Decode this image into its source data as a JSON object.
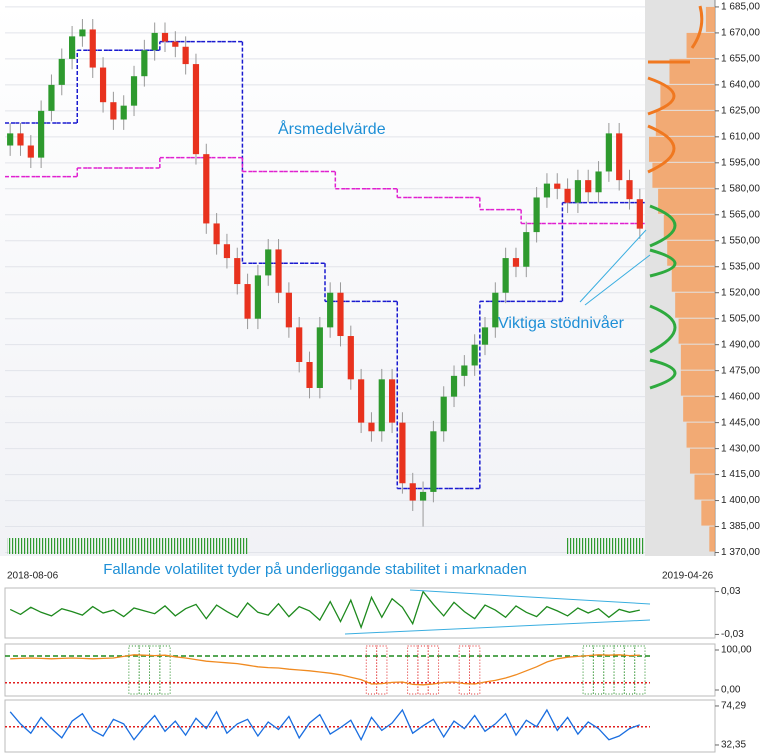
{
  "chart_data": [
    {
      "type": "candlestick",
      "x_labels": [
        "2018-08-06",
        "2019-04-26"
      ],
      "annotations": [
        "Årsmedelvärde",
        "Viktiga stödnivåer"
      ],
      "up_color": "#2e9a2e",
      "down_color": "#e8321e",
      "open": [
        1605,
        1612,
        1605,
        1598,
        1625,
        1640,
        1655,
        1668,
        1672,
        1650,
        1630,
        1620,
        1628,
        1645,
        1660,
        1670,
        1665,
        1662,
        1652,
        1600,
        1560,
        1548,
        1540,
        1525,
        1505,
        1530,
        1545,
        1520,
        1500,
        1480,
        1465,
        1500,
        1520,
        1495,
        1470,
        1445,
        1440,
        1470,
        1445,
        1410,
        1400,
        1405,
        1440,
        1460,
        1472,
        1478,
        1490,
        1500,
        1520,
        1540,
        1535,
        1555,
        1575,
        1583,
        1580,
        1572,
        1585,
        1578,
        1590,
        1612,
        1585,
        1574
      ],
      "high": [
        1618,
        1618,
        1611,
        1631,
        1646,
        1661,
        1674,
        1678,
        1678,
        1656,
        1636,
        1634,
        1651,
        1666,
        1676,
        1676,
        1671,
        1668,
        1658,
        1606,
        1566,
        1554,
        1546,
        1531,
        1536,
        1551,
        1551,
        1526,
        1506,
        1486,
        1506,
        1526,
        1526,
        1501,
        1476,
        1451,
        1476,
        1476,
        1451,
        1416,
        1411,
        1446,
        1466,
        1478,
        1484,
        1496,
        1506,
        1526,
        1546,
        1546,
        1561,
        1581,
        1589,
        1589,
        1586,
        1591,
        1591,
        1596,
        1618,
        1618,
        1591,
        1580
      ],
      "low": [
        1599,
        1599,
        1592,
        1592,
        1619,
        1634,
        1649,
        1662,
        1644,
        1624,
        1614,
        1614,
        1622,
        1639,
        1654,
        1659,
        1656,
        1646,
        1594,
        1554,
        1542,
        1534,
        1519,
        1499,
        1499,
        1524,
        1514,
        1494,
        1474,
        1459,
        1459,
        1494,
        1489,
        1464,
        1439,
        1434,
        1434,
        1439,
        1404,
        1394,
        1385,
        1399,
        1434,
        1454,
        1466,
        1472,
        1484,
        1494,
        1514,
        1529,
        1529,
        1549,
        1569,
        1574,
        1566,
        1566,
        1572,
        1572,
        1584,
        1579,
        1568,
        1551
      ],
      "close": [
        1612,
        1605,
        1598,
        1625,
        1640,
        1655,
        1668,
        1672,
        1650,
        1630,
        1620,
        1628,
        1645,
        1660,
        1670,
        1665,
        1662,
        1652,
        1600,
        1560,
        1548,
        1540,
        1525,
        1505,
        1530,
        1545,
        1520,
        1500,
        1480,
        1465,
        1500,
        1520,
        1495,
        1470,
        1445,
        1440,
        1470,
        1445,
        1410,
        1400,
        1405,
        1440,
        1460,
        1472,
        1478,
        1490,
        1500,
        1520,
        1540,
        1535,
        1555,
        1575,
        1583,
        1580,
        1572,
        1585,
        1578,
        1590,
        1612,
        1585,
        1574,
        1557
      ],
      "averages": [
        {
          "color": "#1a1ad0",
          "values": [
            1618,
            1618,
            1618,
            1618,
            1618,
            1618,
            1618,
            1660,
            1660,
            1660,
            1660,
            1660,
            1660,
            1660,
            1660,
            1665,
            1665,
            1665,
            1665,
            1665,
            1665,
            1665,
            1665,
            1537,
            1537,
            1537,
            1537,
            1537,
            1537,
            1537,
            1537,
            1515,
            1515,
            1515,
            1515,
            1515,
            1515,
            1515,
            1407,
            1407,
            1407,
            1407,
            1407,
            1407,
            1407,
            1407,
            1515,
            1515,
            1515,
            1515,
            1515,
            1515,
            1515,
            1515,
            1572,
            1572,
            1572,
            1572,
            1572,
            1572,
            1572,
            1572
          ]
        },
        {
          "color": "#e020d0",
          "values": [
            1587,
            1587,
            1587,
            1587,
            1587,
            1587,
            1587,
            1592,
            1592,
            1592,
            1592,
            1592,
            1592,
            1592,
            1592,
            1598,
            1598,
            1598,
            1598,
            1598,
            1598,
            1598,
            1598,
            1590,
            1590,
            1590,
            1590,
            1590,
            1590,
            1590,
            1590,
            1590,
            1580,
            1580,
            1580,
            1580,
            1580,
            1580,
            1575,
            1575,
            1575,
            1575,
            1575,
            1575,
            1575,
            1575,
            1568,
            1568,
            1568,
            1568,
            1560,
            1560,
            1560,
            1560,
            1560,
            1560,
            1560,
            1560,
            1560,
            1560,
            1560,
            1560
          ]
        }
      ],
      "volume_profile": {
        "color": "#f4a060",
        "bins": [
          1370,
          1385,
          1400,
          1415,
          1430,
          1445,
          1460,
          1475,
          1490,
          1505,
          1520,
          1535,
          1550,
          1565,
          1580,
          1595,
          1610,
          1625,
          1640,
          1655,
          1670,
          1685
        ],
        "values": [
          5,
          12,
          18,
          22,
          25,
          28,
          30,
          30,
          32,
          35,
          38,
          42,
          45,
          50,
          55,
          58,
          52,
          48,
          40,
          25,
          8
        ]
      },
      "ylim": [
        1368,
        1689
      ],
      "yticks": [
        {
          "value": 1370,
          "label": "1 370,00"
        },
        {
          "value": 1385,
          "label": "1 385,00"
        },
        {
          "value": 1400,
          "label": "1 400,00"
        },
        {
          "value": 1415,
          "label": "1 415,00"
        },
        {
          "value": 1430,
          "label": "1 430,00"
        },
        {
          "value": 1445,
          "label": "1 445,00"
        },
        {
          "value": 1460,
          "label": "1 460,00"
        },
        {
          "value": 1475,
          "label": "1 475,00"
        },
        {
          "value": 1490,
          "label": "1 490,00"
        },
        {
          "value": 1505,
          "label": "1 505,00"
        },
        {
          "value": 1520,
          "label": "1 520,00"
        },
        {
          "value": 1535,
          "label": "1 535,00"
        },
        {
          "value": 1550,
          "label": "1 550,00"
        },
        {
          "value": 1565,
          "label": "1 565,00"
        },
        {
          "value": 1580,
          "label": "1 580,00"
        },
        {
          "value": 1595,
          "label": "1 595,00"
        },
        {
          "value": 1610,
          "label": "1 610,00"
        },
        {
          "value": 1625,
          "label": "1 625,00"
        },
        {
          "value": 1640,
          "label": "1 640,00"
        },
        {
          "value": 1655,
          "label": "1 655,00"
        },
        {
          "value": 1670,
          "label": "1 670,00"
        },
        {
          "value": 1685,
          "label": "1 685,00"
        }
      ],
      "grid": true
    },
    {
      "type": "line",
      "title": "Fallande volatilitet tyder på underliggande stabilitet i marknaden",
      "series": [
        {
          "color": "#1e8a1e",
          "values": [
            0.005,
            -0.002,
            0.008,
            0.001,
            -0.004,
            0.006,
            0.002,
            -0.003,
            0.009,
            0.0,
            0.004,
            -0.005,
            0.007,
            0.003,
            -0.001,
            0.01,
            -0.004,
            0.006,
            0.012,
            -0.008,
            0.011,
            0.002,
            -0.006,
            0.014,
            0.001,
            -0.003,
            0.013,
            -0.005,
            0.009,
            0.003,
            -0.01,
            0.016,
            -0.012,
            0.018,
            -0.02,
            0.022,
            -0.006,
            0.02,
            0.008,
            -0.015,
            0.03,
            0.012,
            -0.004,
            0.015,
            0.002,
            -0.008,
            0.011,
            0.004,
            -0.006,
            0.01,
            0.001,
            -0.005,
            0.009,
            0.003,
            -0.004,
            0.007,
            0.0,
            0.006,
            -0.006,
            0.005,
            0.001,
            0.004
          ]
        }
      ],
      "ylim": [
        -0.035,
        0.035
      ],
      "yticks": [
        {
          "value": 0.03,
          "label": "0,03"
        },
        {
          "value": -0.03,
          "label": "-0,03"
        }
      ]
    },
    {
      "type": "line",
      "series": [
        {
          "color": "#f08a20",
          "values": [
            78,
            79,
            80,
            79,
            78,
            79,
            80,
            79,
            78,
            79,
            80,
            84,
            88,
            87,
            86,
            87,
            83,
            80,
            76,
            72,
            70,
            68,
            66,
            62,
            58,
            56,
            55,
            52,
            50,
            48,
            45,
            42,
            38,
            32,
            26,
            15,
            16,
            19,
            20,
            14,
            13,
            15,
            19,
            20,
            16,
            15,
            20,
            24,
            30,
            38,
            48,
            58,
            70,
            78,
            82,
            84,
            86,
            88,
            87,
            88,
            86,
            87
          ]
        }
      ],
      "levels": [
        {
          "color": "#1e8a1e",
          "value": 85
        },
        {
          "color": "#e02020",
          "value": 18
        }
      ],
      "ylim": [
        -15,
        115
      ],
      "yticks": [
        {
          "value": 100,
          "label": "100,00"
        },
        {
          "value": 0,
          "label": "0,00"
        }
      ]
    },
    {
      "type": "line",
      "series": [
        {
          "color": "#1a6ee0",
          "values": [
            68,
            55,
            45,
            62,
            50,
            40,
            58,
            66,
            48,
            42,
            60,
            55,
            38,
            52,
            64,
            47,
            58,
            43,
            61,
            50,
            68,
            45,
            55,
            60,
            42,
            57,
            49,
            63,
            40,
            56,
            65,
            44,
            51,
            59,
            38,
            62,
            48,
            56,
            70,
            45,
            53,
            60,
            41,
            58,
            50,
            64,
            47,
            55,
            66,
            43,
            59,
            52,
            70,
            48,
            62,
            44,
            57,
            50,
            38,
            42,
            50,
            54
          ]
        }
      ],
      "levels": [
        {
          "color": "#e02020",
          "value": 52
        }
      ],
      "ylim": [
        24.8,
        80.7
      ],
      "yticks": [
        {
          "value": 74.29,
          "label": "74,29"
        },
        {
          "value": 32.35,
          "label": "32,35"
        }
      ]
    }
  ]
}
